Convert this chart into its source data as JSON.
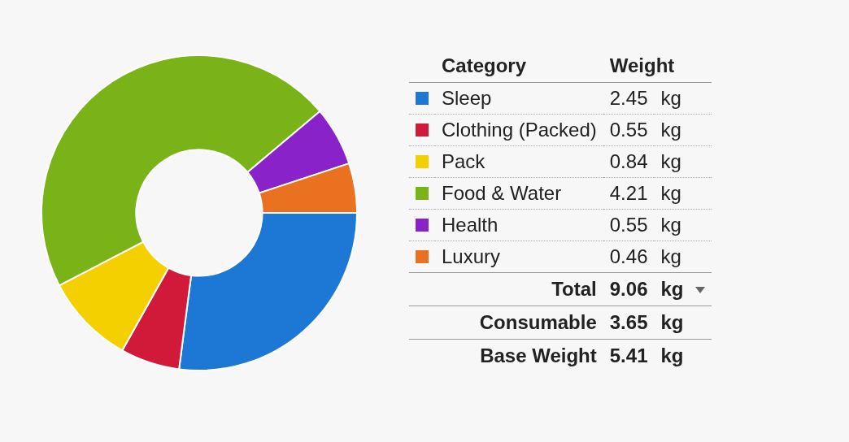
{
  "chart_data": {
    "type": "donut",
    "legend_title": "Category",
    "ylabel": "Weight",
    "categories": [
      "Sleep",
      "Clothing (Packed)",
      "Pack",
      "Food & Water",
      "Health",
      "Luxury"
    ],
    "values": [
      2.45,
      0.55,
      0.84,
      4.21,
      0.55,
      0.46
    ],
    "colors": [
      "#1c78d4",
      "#d11a3a",
      "#f4d000",
      "#7ab317",
      "#8a22c9",
      "#ea7120"
    ],
    "value_labels": [
      "2.45 kg",
      "0.55 kg",
      "0.84 kg",
      "4.21 kg",
      "0.55 kg",
      "0.46 kg"
    ],
    "data_labels": true,
    "legend": "right",
    "annotations": [
      "Total 9.06 kg",
      "Consumable 3.65 kg",
      "Base Weight 5.41 kg"
    ]
  }
}
